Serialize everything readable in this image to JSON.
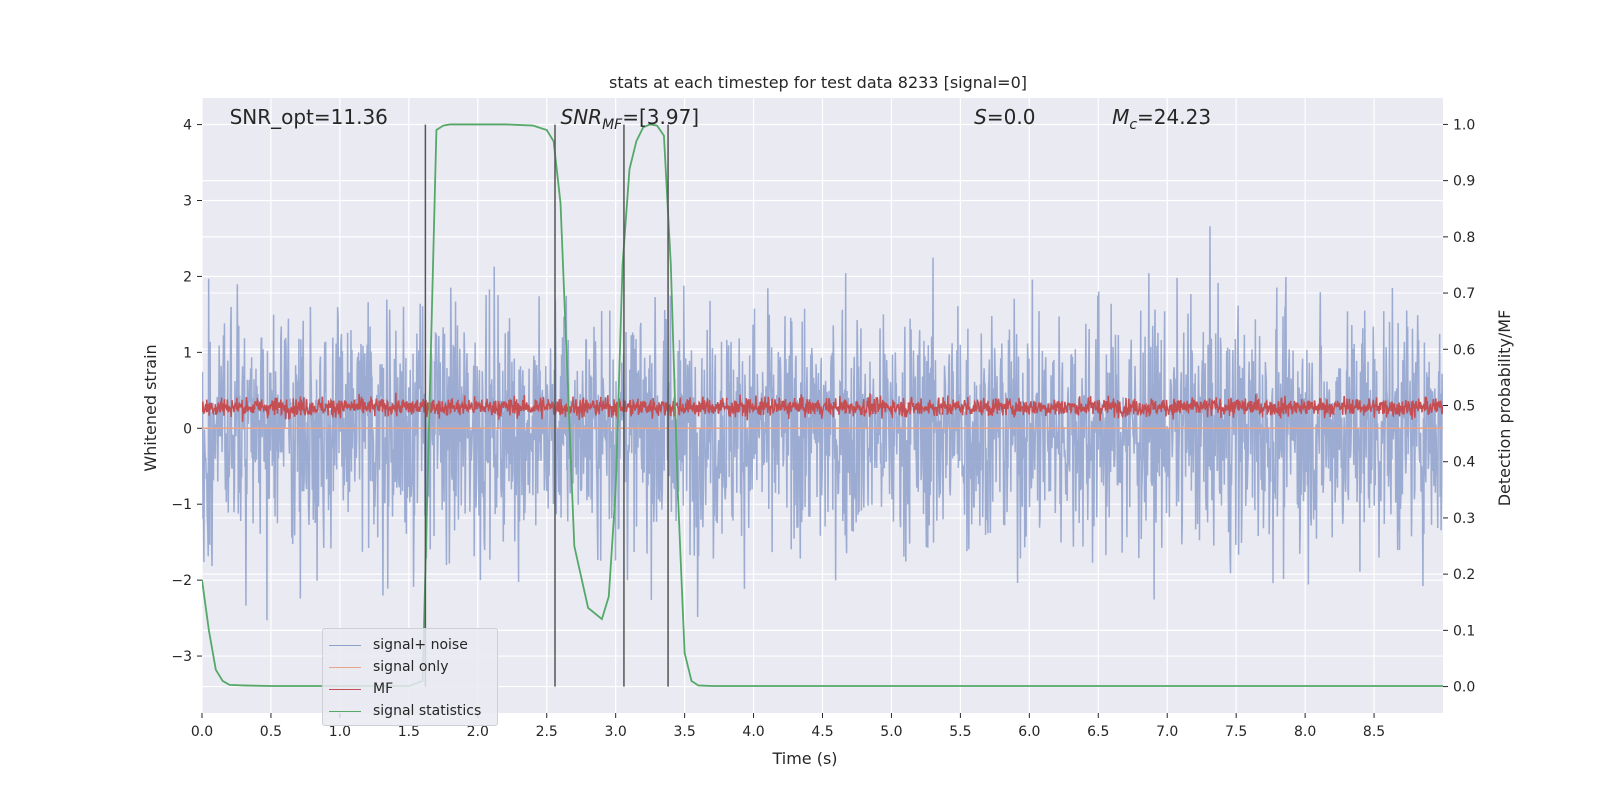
{
  "chart_data": {
    "type": "line",
    "title": "stats at each timestep for test data 8233 [signal=0]",
    "xlabel": "Time (s)",
    "ylabel_left": "Whitened strain",
    "ylabel_right": "Detection probability/MF",
    "xlim": [
      0.0,
      9.0
    ],
    "ylim_left": [
      -3.75,
      4.35
    ],
    "ylim_right": [
      -0.047,
      1.047
    ],
    "x_ticks": [
      "0.0",
      "0.5",
      "1.0",
      "1.5",
      "2.0",
      "2.5",
      "3.0",
      "3.5",
      "4.0",
      "4.5",
      "5.0",
      "5.5",
      "6.0",
      "6.5",
      "7.0",
      "7.5",
      "8.0",
      "8.5"
    ],
    "y_ticks_left": [
      "−3",
      "−2",
      "−1",
      "0",
      "1",
      "2",
      "3",
      "4"
    ],
    "y_ticks_right": [
      "0.0",
      "0.1",
      "0.2",
      "0.3",
      "0.4",
      "0.5",
      "0.6",
      "0.7",
      "0.8",
      "0.9",
      "1.0"
    ],
    "grid": true,
    "legend_position": "lower-left",
    "annotations": [
      {
        "text": "SNR_opt=11.36",
        "x": 0.2
      },
      {
        "text": "SNR",
        "sub": "MF",
        "tail": "=[3.97]",
        "x": 2.6
      },
      {
        "text": "S",
        "tail": "=0.0",
        "x": 5.6
      },
      {
        "text": "M",
        "sub": "c",
        "tail": "=24.23",
        "x": 6.6
      }
    ],
    "vertical_lines_x": [
      1.62,
      2.56,
      3.06,
      3.38
    ],
    "series": [
      {
        "name": "signal+ noise",
        "color": "#8da0cb",
        "axis": "left",
        "noise_amplitude": 1.0,
        "center": 0.0
      },
      {
        "name": "signal only",
        "color": "#e8a58c",
        "axis": "left",
        "values": "flat-zero"
      },
      {
        "name": "MF",
        "color": "#c44e52",
        "axis": "left",
        "center": 0.28,
        "noise_amplitude": 0.22
      },
      {
        "name": "signal statistics",
        "color": "#55a868",
        "axis": "right",
        "x": [
          0.0,
          0.05,
          0.1,
          0.15,
          0.2,
          0.3,
          0.5,
          0.8,
          1.0,
          1.5,
          1.6,
          1.65,
          1.7,
          1.75,
          1.8,
          1.9,
          2.0,
          2.2,
          2.4,
          2.5,
          2.55,
          2.6,
          2.7,
          2.8,
          2.9,
          2.95,
          3.0,
          3.05,
          3.1,
          3.15,
          3.2,
          3.25,
          3.3,
          3.35,
          3.4,
          3.45,
          3.5,
          3.55,
          3.6,
          3.7,
          4.0,
          5.0,
          6.0,
          7.0,
          8.0,
          9.0
        ],
        "values": [
          0.19,
          0.1,
          0.03,
          0.01,
          0.003,
          0.002,
          0.001,
          0.001,
          0.001,
          0.001,
          0.01,
          0.5,
          0.99,
          0.998,
          1.0,
          1.0,
          1.0,
          1.0,
          0.998,
          0.99,
          0.97,
          0.86,
          0.25,
          0.14,
          0.12,
          0.16,
          0.35,
          0.75,
          0.92,
          0.97,
          0.995,
          1.0,
          0.998,
          0.98,
          0.75,
          0.35,
          0.06,
          0.01,
          0.002,
          0.001,
          0.001,
          0.001,
          0.001,
          0.001,
          0.001,
          0.001
        ]
      }
    ]
  }
}
